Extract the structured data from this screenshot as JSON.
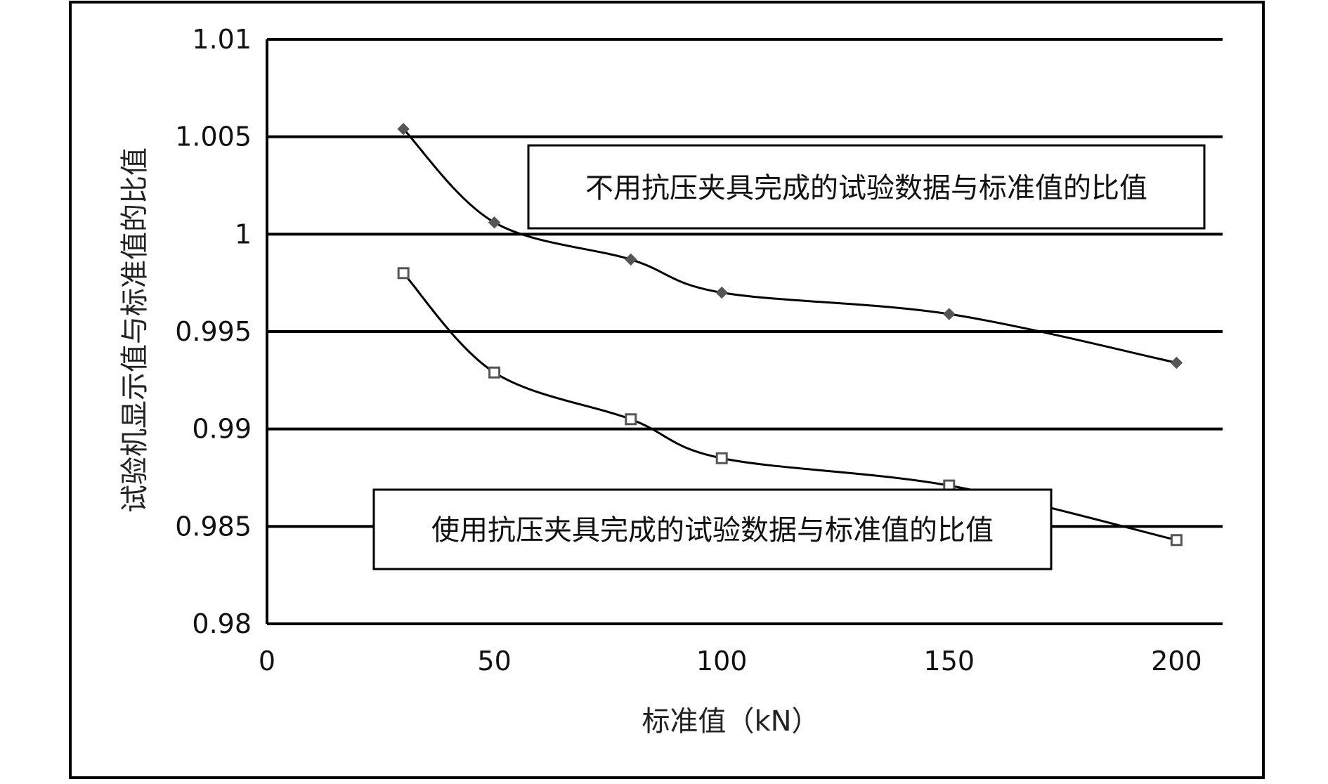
{
  "chart_data": {
    "type": "line",
    "title": "",
    "xlabel": "标准值（kN）",
    "ylabel": "试验机显示值与标准值的比值",
    "xlim": [
      0,
      210
    ],
    "ylim": [
      0.98,
      1.01
    ],
    "x_ticks": [
      0,
      50,
      100,
      150,
      200
    ],
    "x_tick_labels": [
      "0",
      "50",
      "100",
      "150",
      "200"
    ],
    "y_ticks": [
      0.98,
      0.985,
      0.99,
      0.995,
      1.0,
      1.005,
      1.01
    ],
    "y_tick_labels": [
      "0.98",
      "0.985",
      "0.99",
      "0.995",
      "1",
      "1.005",
      "1.01"
    ],
    "grid": "horizontal",
    "smooth": true,
    "series": [
      {
        "marker": "diamond",
        "color": "#555555",
        "x": [
          30,
          50,
          80,
          100,
          150,
          200
        ],
        "y": [
          1.0054,
          1.0006,
          0.9987,
          0.997,
          0.9959,
          0.9934
        ]
      },
      {
        "marker": "square-open",
        "color": "#555555",
        "x": [
          30,
          50,
          80,
          100,
          150,
          200
        ],
        "y": [
          0.998,
          0.9929,
          0.9905,
          0.9885,
          0.9871,
          0.9843
        ]
      }
    ],
    "annotations": [
      {
        "text": "不用抗压夹具完成的试验数据与标准值的比值",
        "series": 0
      },
      {
        "text": "使用抗压夹具完成的试验数据与标准值的比值",
        "series": 1
      }
    ]
  }
}
